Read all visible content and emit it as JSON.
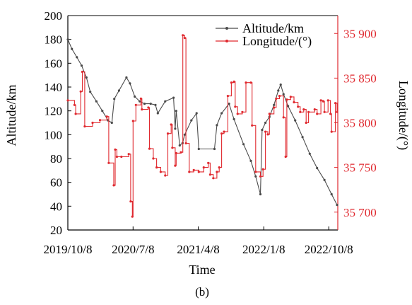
{
  "caption": "(b)",
  "colors": {
    "altitude": "#4a4a4a",
    "longitude": "#e0292f",
    "axis_left": "#000000",
    "axis_right": "#e0292f"
  },
  "chart_data": {
    "type": "line",
    "title": "",
    "xlabel": "Time",
    "ylabel_left": "Altitude/km",
    "ylabel_right": "Longitude/(°)",
    "x_ticks": [
      "2019/10/8",
      "2020/7/8",
      "2021/4/8",
      "2022/1/8",
      "2022/10/8"
    ],
    "x_range": [
      "2019-10-08",
      "2022-11-15"
    ],
    "ylim_left": [
      20,
      200
    ],
    "y_ticks_left": [
      "20",
      "40",
      "60",
      "80",
      "100",
      "120",
      "140",
      "160",
      "180",
      "200"
    ],
    "ylim_right": [
      35680,
      35920
    ],
    "y_ticks_right": [
      "35 700",
      "35 750",
      "35 800",
      "35 850",
      "35 900"
    ],
    "legend": {
      "placement": "top-right",
      "entries": [
        "Altitude/km",
        "Longitude/(°)"
      ]
    },
    "grid": false,
    "series": [
      {
        "name": "Altitude/km",
        "axis": "left",
        "marker": "dot",
        "points": [
          [
            "2019-10-08",
            180
          ],
          [
            "2019-10-25",
            172
          ],
          [
            "2019-11-15",
            165
          ],
          [
            "2019-12-05",
            158
          ],
          [
            "2019-12-25",
            148
          ],
          [
            "2020-01-10",
            136
          ],
          [
            "2020-02-05",
            128
          ],
          [
            "2020-03-01",
            120
          ],
          [
            "2020-03-25",
            112
          ],
          [
            "2020-04-10",
            110
          ],
          [
            "2020-04-20",
            130
          ],
          [
            "2020-05-10",
            137
          ],
          [
            "2020-06-10",
            148
          ],
          [
            "2020-06-25",
            143
          ],
          [
            "2020-07-15",
            132
          ],
          [
            "2020-08-05",
            128
          ],
          [
            "2020-08-25",
            126
          ],
          [
            "2020-09-20",
            126
          ],
          [
            "2020-10-10",
            125
          ],
          [
            "2020-10-20",
            118
          ],
          [
            "2020-11-20",
            128
          ],
          [
            "2020-12-25",
            131
          ],
          [
            "2021-01-01",
            105
          ],
          [
            "2021-01-05",
            120
          ],
          [
            "2021-01-20",
            91
          ],
          [
            "2021-02-01",
            93
          ],
          [
            "2021-02-10",
            100
          ],
          [
            "2021-03-10",
            112
          ],
          [
            "2021-04-01",
            118
          ],
          [
            "2021-04-10",
            88
          ],
          [
            "2021-06-15",
            88
          ],
          [
            "2021-06-25",
            108
          ],
          [
            "2021-07-15",
            118
          ],
          [
            "2021-08-15",
            126
          ],
          [
            "2021-09-05",
            113
          ],
          [
            "2021-10-15",
            92
          ],
          [
            "2021-11-15",
            78
          ],
          [
            "2021-12-05",
            65
          ],
          [
            "2021-12-25",
            50
          ],
          [
            "2022-01-01",
            104
          ],
          [
            "2022-01-15",
            110
          ],
          [
            "2022-02-01",
            115
          ],
          [
            "2022-02-20",
            125
          ],
          [
            "2022-03-10",
            137
          ],
          [
            "2022-03-20",
            142
          ],
          [
            "2022-04-01",
            134
          ],
          [
            "2022-04-20",
            124
          ],
          [
            "2022-05-20",
            112
          ],
          [
            "2022-06-20",
            98
          ],
          [
            "2022-07-20",
            84
          ],
          [
            "2022-08-20",
            72
          ],
          [
            "2022-09-20",
            62
          ],
          [
            "2022-10-20",
            50
          ],
          [
            "2022-11-12",
            41
          ]
        ]
      },
      {
        "name": "Longitude/(°)",
        "axis": "right",
        "marker": "dot",
        "step": true,
        "points": [
          [
            "2019-10-08",
            35825
          ],
          [
            "2019-11-05",
            35820
          ],
          [
            "2019-11-10",
            35810
          ],
          [
            "2019-12-01",
            35835
          ],
          [
            "2019-12-08",
            35857
          ],
          [
            "2019-12-18",
            35796
          ],
          [
            "2020-01-20",
            35800
          ],
          [
            "2020-02-20",
            35803
          ],
          [
            "2020-03-20",
            35807
          ],
          [
            "2020-03-28",
            35755
          ],
          [
            "2020-04-18",
            35730
          ],
          [
            "2020-04-24",
            35770
          ],
          [
            "2020-05-01",
            35762
          ],
          [
            "2020-05-20",
            35762
          ],
          [
            "2020-06-20",
            35765
          ],
          [
            "2020-06-28",
            35712
          ],
          [
            "2020-07-05",
            35695
          ],
          [
            "2020-07-08",
            35802
          ],
          [
            "2020-07-20",
            35820
          ],
          [
            "2020-08-10",
            35827
          ],
          [
            "2020-08-14",
            35815
          ],
          [
            "2020-09-10",
            35817
          ],
          [
            "2020-09-15",
            35771
          ],
          [
            "2020-10-01",
            35760
          ],
          [
            "2020-10-15",
            35750
          ],
          [
            "2020-11-01",
            35745
          ],
          [
            "2020-11-20",
            35741
          ],
          [
            "2020-12-01",
            35788
          ],
          [
            "2020-12-15",
            35798
          ],
          [
            "2020-12-20",
            35772
          ],
          [
            "2021-01-01",
            35752
          ],
          [
            "2021-01-05",
            35766
          ],
          [
            "2021-01-25",
            35767
          ],
          [
            "2021-02-02",
            35898
          ],
          [
            "2021-02-10",
            35895
          ],
          [
            "2021-02-15",
            35777
          ],
          [
            "2021-03-01",
            35745
          ],
          [
            "2021-03-20",
            35747
          ],
          [
            "2021-04-10",
            35745
          ],
          [
            "2021-05-01",
            35750
          ],
          [
            "2021-05-20",
            35755
          ],
          [
            "2021-05-28",
            35742
          ],
          [
            "2021-06-10",
            35738
          ],
          [
            "2021-06-25",
            35745
          ],
          [
            "2021-07-05",
            35750
          ],
          [
            "2021-07-15",
            35788
          ],
          [
            "2021-07-25",
            35790
          ],
          [
            "2021-08-10",
            35830
          ],
          [
            "2021-08-25",
            35845
          ],
          [
            "2021-09-05",
            35846
          ],
          [
            "2021-09-10",
            35818
          ],
          [
            "2021-09-20",
            35810
          ],
          [
            "2021-10-10",
            35812
          ],
          [
            "2021-10-25",
            35845
          ],
          [
            "2021-11-15",
            35845
          ],
          [
            "2021-11-20",
            35797
          ],
          [
            "2021-12-05",
            35745
          ],
          [
            "2021-12-25",
            35740
          ],
          [
            "2022-01-05",
            35748
          ],
          [
            "2022-01-15",
            35790
          ],
          [
            "2022-01-25",
            35787
          ],
          [
            "2022-02-01",
            35810
          ],
          [
            "2022-02-20",
            35817
          ],
          [
            "2022-03-01",
            35827
          ],
          [
            "2022-03-15",
            35830
          ],
          [
            "2022-04-01",
            35806
          ],
          [
            "2022-04-10",
            35762
          ],
          [
            "2022-04-15",
            35826
          ],
          [
            "2022-05-01",
            35829
          ],
          [
            "2022-05-15",
            35823
          ],
          [
            "2022-06-01",
            35818
          ],
          [
            "2022-06-10",
            35812
          ],
          [
            "2022-06-25",
            35815
          ],
          [
            "2022-07-05",
            35800
          ],
          [
            "2022-07-15",
            35812
          ],
          [
            "2022-08-10",
            35815
          ],
          [
            "2022-08-20",
            35810
          ],
          [
            "2022-09-05",
            35825
          ],
          [
            "2022-09-15",
            35824
          ],
          [
            "2022-09-20",
            35812
          ],
          [
            "2022-10-05",
            35825
          ],
          [
            "2022-10-15",
            35810
          ],
          [
            "2022-10-20",
            35790
          ],
          [
            "2022-11-05",
            35822
          ],
          [
            "2022-11-12",
            35812
          ]
        ]
      }
    ]
  }
}
